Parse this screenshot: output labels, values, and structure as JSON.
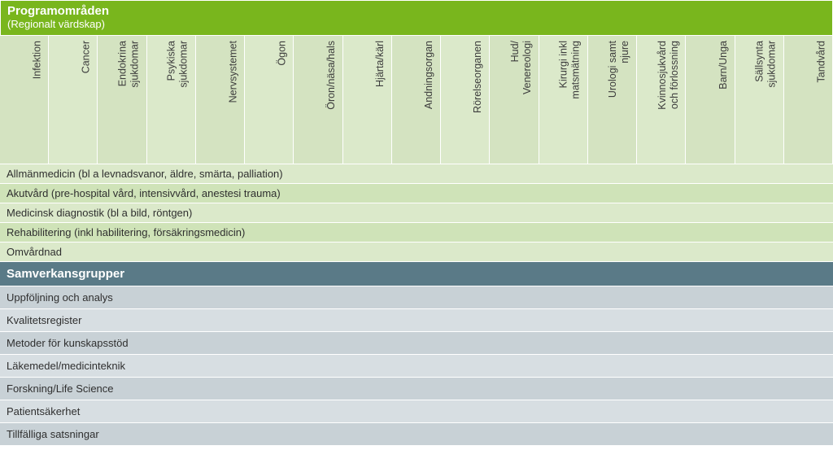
{
  "colors": {
    "green_header": "#79b61d",
    "green_cell_a": "#d4e3c1",
    "green_cell_b": "#dbe9ca",
    "green_row_a": "#dbe9ca",
    "green_row_b": "#cfe3b8",
    "blue_header": "#5a7a87",
    "blue_row_a": "#c8d1d6",
    "blue_row_b": "#d7dee2",
    "text": "#2f2f2f",
    "white": "#ffffff"
  },
  "typography": {
    "header_fontsize": 15,
    "label_fontsize": 13,
    "vert_fontsize": 12.5
  },
  "section_green": {
    "title": "Programområden",
    "subtitle": "(Regionalt värdskap)",
    "vertical_labels": [
      {
        "l1": "Infektion",
        "l2": ""
      },
      {
        "l1": "Cancer",
        "l2": ""
      },
      {
        "l1": "Endokrina",
        "l2": "sjukdomar"
      },
      {
        "l1": "Psykiska",
        "l2": "sjukdomar"
      },
      {
        "l1": "Nervsystemet",
        "l2": ""
      },
      {
        "l1": "Ögon",
        "l2": ""
      },
      {
        "l1": "Öron/näsa/hals",
        "l2": ""
      },
      {
        "l1": "Hjärta/kärl",
        "l2": ""
      },
      {
        "l1": "Andningsorgan",
        "l2": ""
      },
      {
        "l1": "Rörelseorganen",
        "l2": ""
      },
      {
        "l1": "Hud/",
        "l2": "Venereologi"
      },
      {
        "l1": "Kirurgi inkl",
        "l2": "matsmätning"
      },
      {
        "l1": "Urologi samt",
        "l2": "njure"
      },
      {
        "l1": "Kvinnosjukvård",
        "l2": "och förlossning"
      },
      {
        "l1": "Barn/Unga",
        "l2": ""
      },
      {
        "l1": "Sällsynta",
        "l2": "sjukdomar"
      },
      {
        "l1": "Tandvård",
        "l2": ""
      }
    ],
    "rows": [
      "Allmänmedicin (bl a levnadsvanor, äldre, smärta, palliation)",
      "Akutvård (pre-hospital vård, intensivvård, anestesi trauma)",
      "Medicinsk diagnostik (bl a bild, röntgen)",
      "Rehabilitering (inkl habilitering, försäkringsmedicin)",
      "Omvårdnad"
    ]
  },
  "section_blue": {
    "title": "Samverkansgrupper",
    "rows": [
      "Uppföljning och analys",
      "Kvalitetsregister",
      "Metoder för kunskapsstöd",
      "Läkemedel/medicinteknik",
      "Forskning/Life Science",
      "Patientsäkerhet",
      "Tillfälliga satsningar"
    ]
  }
}
